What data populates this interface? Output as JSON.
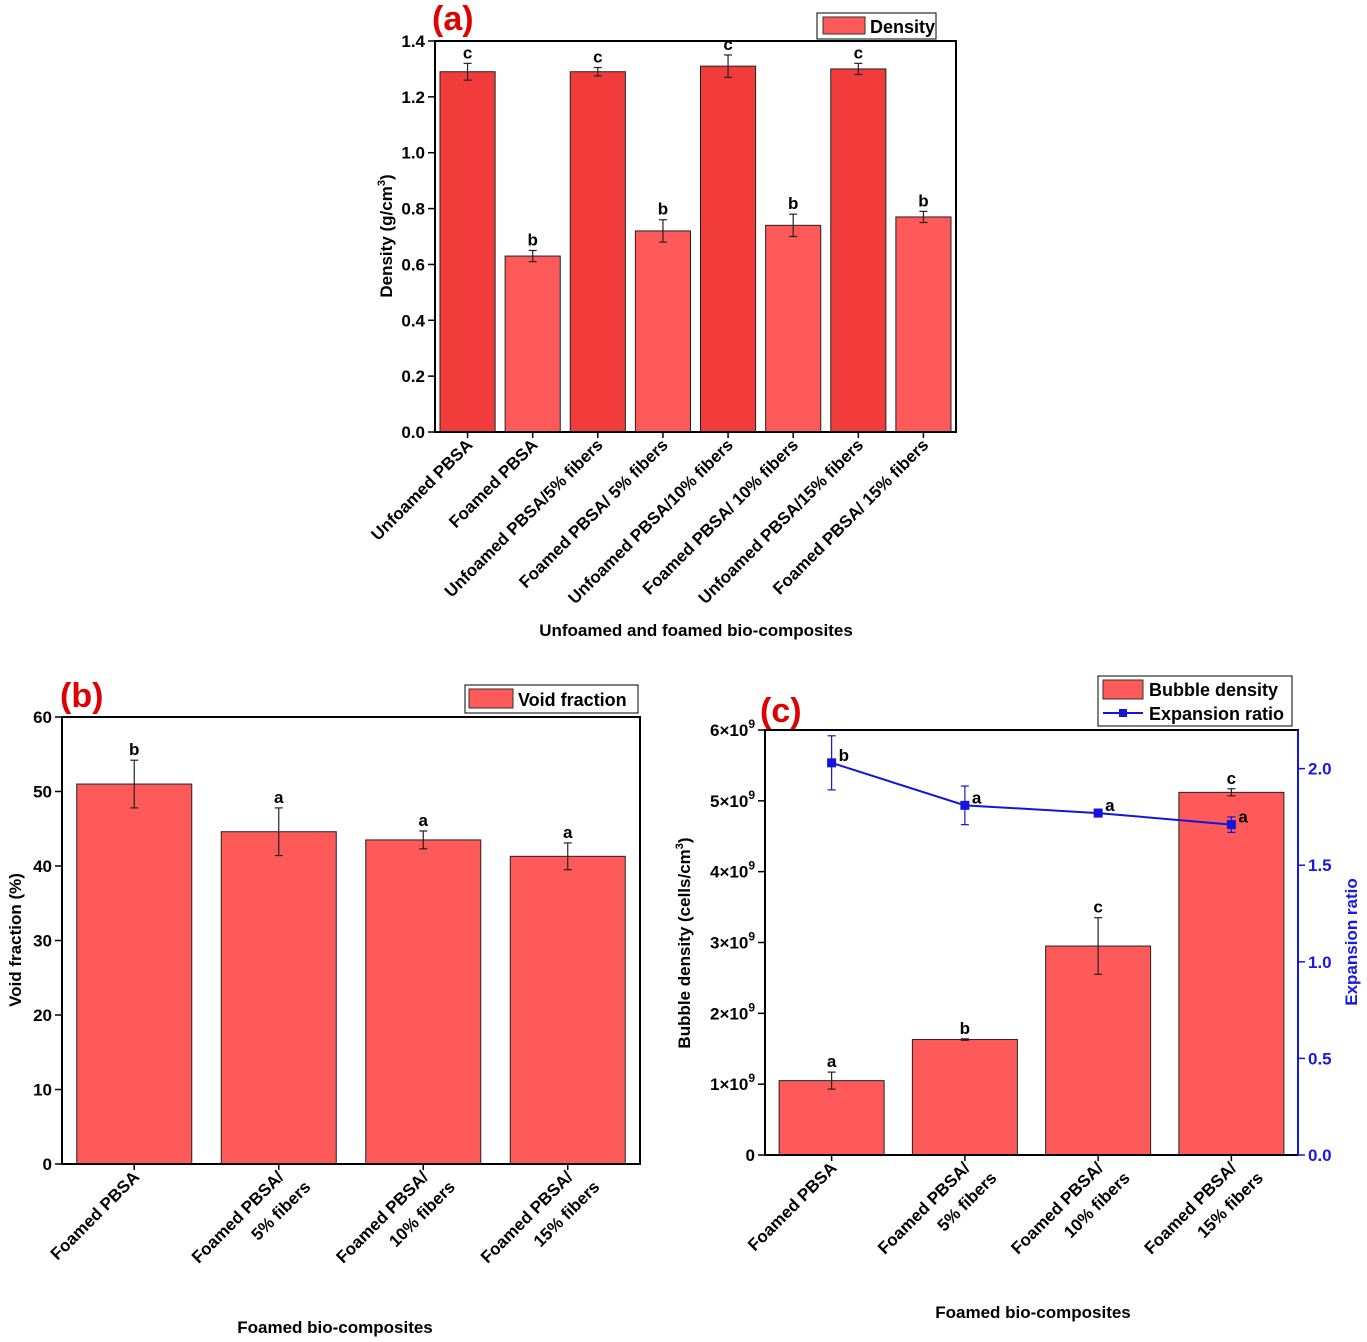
{
  "colors": {
    "bar": "#ff5a5a",
    "bar_dark": "#f23c3c",
    "line": "#1414dc",
    "panel_label": "#e00000"
  },
  "chart_data": [
    {
      "panel": "(a)",
      "type": "bar",
      "categories": [
        "Unfoamed PBSA",
        "Foamed PBSA",
        "Unfoamed PBSA/5% fibers",
        "Foamed PBSA/ 5% fibers",
        "Unfoamed PBSA/10% fibers",
        "Foamed PBSA/ 10% fibers",
        "Unfoamed PBSA/15% fibers",
        "Foamed PBSA/ 15% fibers"
      ],
      "values": [
        1.29,
        0.63,
        1.29,
        0.72,
        1.31,
        0.74,
        1.3,
        0.77
      ],
      "errors": [
        0.03,
        0.02,
        0.015,
        0.04,
        0.04,
        0.04,
        0.02,
        0.02
      ],
      "significance": [
        "c",
        "b",
        "c",
        "b",
        "c",
        "b",
        "c",
        "b"
      ],
      "xlabel": "Unfoamed and foamed bio-composites",
      "ylabel": "Density  (g/cm³)",
      "ylim": [
        0,
        1.4
      ],
      "yticks": [
        "0.0",
        "0.2",
        "0.4",
        "0.6",
        "0.8",
        "1.0",
        "1.2",
        "1.4"
      ],
      "legend": [
        "Density"
      ],
      "legend_position": "top-right"
    },
    {
      "panel": "(b)",
      "type": "bar",
      "categories": [
        "Foamed PBSA",
        "Foamed PBSA/ 5% fibers",
        "Foamed PBSA/ 10% fibers",
        "Foamed PBSA/ 15% fibers"
      ],
      "category_lines": [
        [
          "Foamed PBSA"
        ],
        [
          "Foamed PBSA/",
          "5% fibers"
        ],
        [
          "Foamed PBSA/",
          "10% fibers"
        ],
        [
          "Foamed PBSA/",
          "15% fibers"
        ]
      ],
      "values": [
        51.0,
        44.6,
        43.5,
        41.3
      ],
      "errors": [
        3.2,
        3.2,
        1.2,
        1.8
      ],
      "significance": [
        "b",
        "a",
        "a",
        "a"
      ],
      "xlabel": "Foamed bio-composites",
      "ylabel": "Void fraction (%)",
      "ylim": [
        0,
        60
      ],
      "yticks": [
        "0",
        "10",
        "20",
        "30",
        "40",
        "50",
        "60"
      ],
      "legend": [
        "Void fraction"
      ],
      "legend_position": "top-right"
    },
    {
      "panel": "(c)",
      "type": "bar",
      "categories": [
        "Foamed PBSA",
        "Foamed PBSA/ 5% fibers",
        "Foamed PBSA/ 10% fibers",
        "Foamed PBSA/ 15% fibers"
      ],
      "category_lines": [
        [
          "Foamed PBSA"
        ],
        [
          "Foamed PBSA/",
          "5% fibers"
        ],
        [
          "Foamed PBSA/",
          "10% fibers"
        ],
        [
          "Foamed PBSA/",
          "15% fibers"
        ]
      ],
      "series": [
        {
          "name": "Bubble density",
          "type": "bar",
          "axis": "left",
          "values": [
            1050000000.0,
            1630000000.0,
            2950000000.0,
            5120000000.0
          ],
          "errors": [
            120000000.0,
            10000000.0,
            400000000.0,
            50000000.0
          ],
          "significance": [
            "a",
            "b",
            "c",
            "c"
          ]
        },
        {
          "name": "Expansion ratio",
          "type": "line",
          "axis": "right",
          "values": [
            2.03,
            1.81,
            1.77,
            1.71
          ],
          "errors": [
            0.14,
            0.1,
            0.02,
            0.04
          ],
          "significance": [
            "b",
            "a",
            "a",
            "a"
          ]
        }
      ],
      "xlabel": "Foamed bio-composites",
      "ylabel": "Bubble density (cells/cm³)",
      "y2label": "Expansion ratio",
      "ylim": [
        0,
        6000000000.0
      ],
      "y2lim": [
        0,
        2.2
      ],
      "yticks": [
        {
          "base": "0",
          "exp": ""
        },
        {
          "base": "1×10",
          "exp": "9"
        },
        {
          "base": "2×10",
          "exp": "9"
        },
        {
          "base": "3×10",
          "exp": "9"
        },
        {
          "base": "4×10",
          "exp": "9"
        },
        {
          "base": "5×10",
          "exp": "9"
        },
        {
          "base": "6×10",
          "exp": "9"
        }
      ],
      "y2ticks": [
        "0.0",
        "0.5",
        "1.0",
        "1.5",
        "2.0"
      ],
      "legend": [
        "Bubble density",
        "Expansion ratio"
      ],
      "legend_position": "top-right"
    }
  ]
}
